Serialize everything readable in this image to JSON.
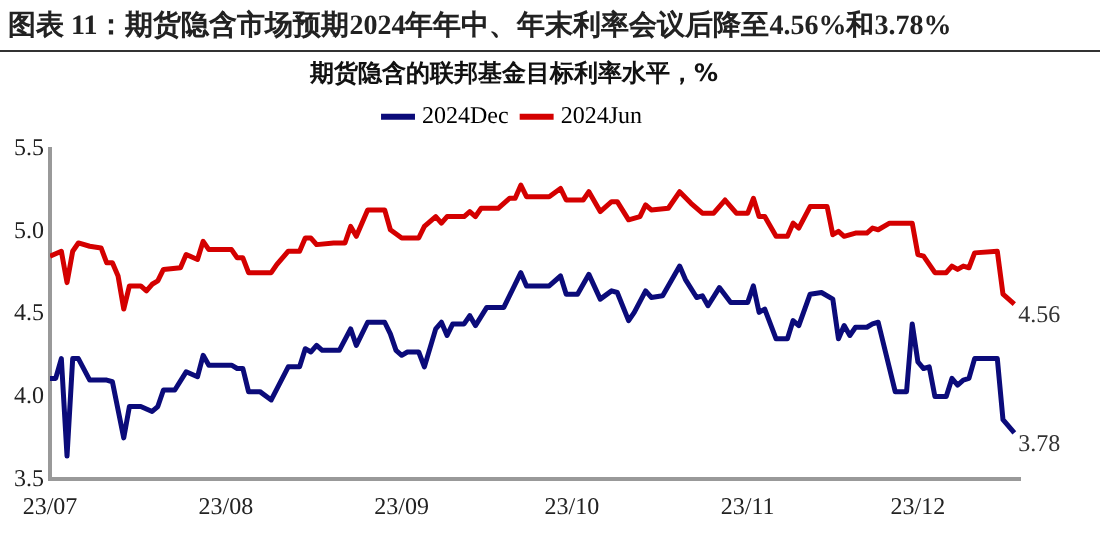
{
  "chart_data": {
    "type": "line",
    "title": "图表 11：期货隐含市场预期2024年年中、年末利率会议后降至4.56%和3.78%",
    "subtitle": "期货隐含的联邦基金目标利率水平，%",
    "legend": "top",
    "grid": false,
    "marker": "none",
    "line_style": "solid",
    "xlim": [
      "--07-01",
      "--12-19"
    ],
    "xticks": [
      {
        "value": "--07-01",
        "label": "23/07"
      },
      {
        "value": "--08-01",
        "label": "23/08"
      },
      {
        "value": "--09-01",
        "label": "23/09"
      },
      {
        "value": "--10-01",
        "label": "23/10"
      },
      {
        "value": "--11-01",
        "label": "23/11"
      },
      {
        "value": "--12-01",
        "label": "23/12"
      }
    ],
    "ylim": [
      3.5,
      5.5
    ],
    "yticks": [
      {
        "value": 3.5,
        "label": "3.5"
      },
      {
        "value": 4,
        "label": "4.0"
      },
      {
        "value": 4.5,
        "label": "4.5"
      },
      {
        "value": 5,
        "label": "5.0"
      },
      {
        "value": 5.5,
        "label": "5.5"
      }
    ],
    "series": [
      {
        "name": "2024Dec",
        "color": "#0b0b7a",
        "x": [
          "--07-01",
          "--07-02",
          "--07-03",
          "--07-04",
          "--07-05",
          "--07-06",
          "--07-08",
          "--07-11",
          "--07-12",
          "--07-14",
          "--07-15",
          "--07-17",
          "--07-19",
          "--07-20",
          "--07-21",
          "--07-23",
          "--07-25",
          "--07-27",
          "--07-28",
          "--07-29",
          "--08-02",
          "--08-03",
          "--08-04",
          "--08-05",
          "--08-07",
          "--08-09",
          "--08-12",
          "--08-14",
          "--08-15",
          "--08-16",
          "--08-17",
          "--08-18",
          "--08-21",
          "--08-23",
          "--08-24",
          "--08-26",
          "--08-29",
          "--08-30",
          "--08-31",
          "--09-01",
          "--09-02",
          "--09-04",
          "--09-05",
          "--09-07",
          "--09-08",
          "--09-09",
          "--09-10",
          "--09-12",
          "--09-13",
          "--09-14",
          "--09-16",
          "--09-19",
          "--09-22",
          "--09-23",
          "--09-27",
          "--09-29",
          "--09-30",
          "--10-02",
          "--10-04",
          "--10-06",
          "--10-08",
          "--10-09",
          "--10-11",
          "--10-12",
          "--10-14",
          "--10-15",
          "--10-17",
          "--10-20",
          "--10-21",
          "--10-23",
          "--10-24",
          "--10-25",
          "--10-27",
          "--10-29",
          "--11-01",
          "--11-02",
          "--11-03",
          "--11-04",
          "--11-06",
          "--11-08",
          "--11-09",
          "--11-10",
          "--11-12",
          "--11-14",
          "--11-16",
          "--11-17",
          "--11-18",
          "--11-19",
          "--11-20",
          "--11-22",
          "--11-23",
          "--11-24",
          "--11-27",
          "--11-29",
          "--11-30",
          "--12-01",
          "--12-02",
          "--12-03",
          "--12-04",
          "--12-06",
          "--12-07",
          "--12-08",
          "--12-09",
          "--12-10",
          "--12-11",
          "--12-15",
          "--12-16",
          "--12-18"
        ],
        "values": [
          4.11,
          4.11,
          4.23,
          3.64,
          4.23,
          4.23,
          4.1,
          4.1,
          4.09,
          3.75,
          3.94,
          3.94,
          3.91,
          3.94,
          4.04,
          4.04,
          4.15,
          4.12,
          4.25,
          4.19,
          4.19,
          4.17,
          4.17,
          4.03,
          4.03,
          3.98,
          4.18,
          4.18,
          4.29,
          4.27,
          4.31,
          4.28,
          4.28,
          4.41,
          4.31,
          4.45,
          4.45,
          4.38,
          4.28,
          4.25,
          4.27,
          4.27,
          4.18,
          4.41,
          4.45,
          4.37,
          4.44,
          4.44,
          4.49,
          4.43,
          4.54,
          4.54,
          4.75,
          4.67,
          4.67,
          4.73,
          4.62,
          4.62,
          4.74,
          4.59,
          4.64,
          4.63,
          4.46,
          4.51,
          4.64,
          4.6,
          4.61,
          4.79,
          4.71,
          4.6,
          4.61,
          4.55,
          4.66,
          4.57,
          4.57,
          4.67,
          4.51,
          4.53,
          4.35,
          4.35,
          4.46,
          4.43,
          4.62,
          4.63,
          4.59,
          4.35,
          4.43,
          4.37,
          4.42,
          4.42,
          4.44,
          4.45,
          4.03,
          4.03,
          4.44,
          4.21,
          4.17,
          4.18,
          4.0,
          4.0,
          4.11,
          4.07,
          4.1,
          4.11,
          4.23,
          4.23,
          3.86,
          3.78
        ]
      },
      {
        "name": "2024Jun",
        "color": "#d40000",
        "x": [
          "--07-01",
          "--07-03",
          "--07-04",
          "--07-05",
          "--07-06",
          "--07-08",
          "--07-10",
          "--07-11",
          "--07-12",
          "--07-13",
          "--07-14",
          "--07-15",
          "--07-17",
          "--07-18",
          "--07-19",
          "--07-20",
          "--07-21",
          "--07-24",
          "--07-25",
          "--07-27",
          "--07-28",
          "--07-29",
          "--08-02",
          "--08-03",
          "--08-04",
          "--08-05",
          "--08-09",
          "--08-10",
          "--08-12",
          "--08-14",
          "--08-15",
          "--08-16",
          "--08-17",
          "--08-20",
          "--08-22",
          "--08-23",
          "--08-24",
          "--08-26",
          "--08-29",
          "--08-30",
          "--09-01",
          "--09-04",
          "--09-05",
          "--09-07",
          "--09-08",
          "--09-09",
          "--09-12",
          "--09-13",
          "--09-14",
          "--09-15",
          "--09-18",
          "--09-20",
          "--09-21",
          "--09-22",
          "--09-23",
          "--09-27",
          "--09-29",
          "--09-30",
          "--10-03",
          "--10-04",
          "--10-06",
          "--10-08",
          "--10-09",
          "--10-11",
          "--10-13",
          "--10-14",
          "--10-15",
          "--10-18",
          "--10-20",
          "--10-22",
          "--10-24",
          "--10-26",
          "--10-28",
          "--10-30",
          "--11-01",
          "--11-02",
          "--11-03",
          "--11-04",
          "--11-06",
          "--11-08",
          "--11-09",
          "--11-10",
          "--11-12",
          "--11-15",
          "--11-16",
          "--11-17",
          "--11-18",
          "--11-20",
          "--11-22",
          "--11-23",
          "--11-24",
          "--11-26",
          "--11-30",
          "--12-01",
          "--12-02",
          "--12-04",
          "--12-06",
          "--12-07",
          "--12-08",
          "--12-09",
          "--12-10",
          "--12-11",
          "--12-15",
          "--12-16",
          "--12-18"
        ],
        "values": [
          4.85,
          4.88,
          4.69,
          4.88,
          4.93,
          4.91,
          4.9,
          4.81,
          4.81,
          4.73,
          4.53,
          4.67,
          4.67,
          4.64,
          4.68,
          4.7,
          4.77,
          4.78,
          4.86,
          4.83,
          4.94,
          4.89,
          4.89,
          4.84,
          4.84,
          4.75,
          4.75,
          4.8,
          4.88,
          4.88,
          4.96,
          4.96,
          4.92,
          4.93,
          4.93,
          5.03,
          4.97,
          5.13,
          5.13,
          5.01,
          4.96,
          4.96,
          5.03,
          5.09,
          5.05,
          5.09,
          5.09,
          5.12,
          5.09,
          5.14,
          5.14,
          5.2,
          5.2,
          5.28,
          5.21,
          5.21,
          5.26,
          5.19,
          5.19,
          5.24,
          5.12,
          5.18,
          5.18,
          5.07,
          5.09,
          5.16,
          5.13,
          5.14,
          5.24,
          5.17,
          5.11,
          5.11,
          5.19,
          5.11,
          5.11,
          5.2,
          5.09,
          5.09,
          4.97,
          4.97,
          5.05,
          5.02,
          5.15,
          5.15,
          4.98,
          5.0,
          4.97,
          4.99,
          4.99,
          5.02,
          5.01,
          5.05,
          5.05,
          4.86,
          4.85,
          4.75,
          4.75,
          4.79,
          4.77,
          4.79,
          4.78,
          4.87,
          4.88,
          4.62,
          4.56
        ]
      }
    ],
    "annotations": [
      {
        "text": "4.56",
        "x": "--12-18",
        "y": 4.56
      },
      {
        "text": "3.78",
        "x": "--12-18",
        "y": 3.78
      }
    ]
  }
}
